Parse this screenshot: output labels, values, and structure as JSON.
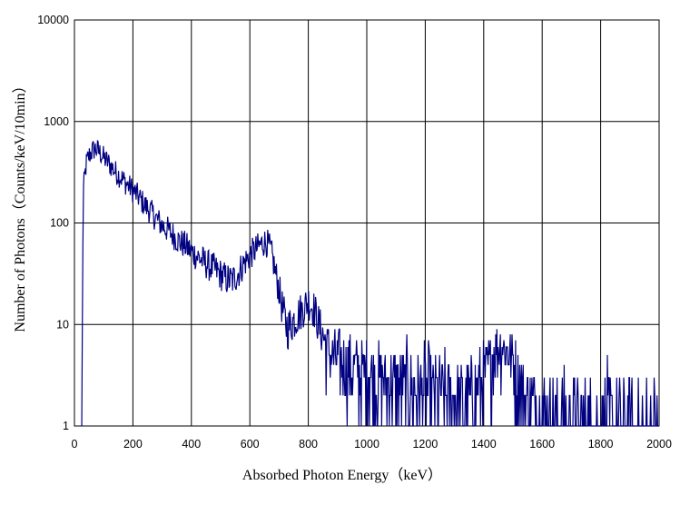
{
  "chart_data": {
    "type": "line",
    "title": "",
    "xlabel": "Absorbed Photon Energy（keV）",
    "ylabel": "Number of Photons（Counts/keV/10min）",
    "xlim": [
      0,
      2000
    ],
    "ylim": [
      1,
      10000
    ],
    "yscale": "log",
    "grid": true,
    "legend": "none",
    "line_color": "#000080",
    "x_ticks": [
      "0",
      "200",
      "400",
      "600",
      "800",
      "1000",
      "1200",
      "1400",
      "1600",
      "1800",
      "2000"
    ],
    "y_ticks": [
      "1",
      "10",
      "100",
      "1000",
      "10000"
    ],
    "series": [
      {
        "x": [
          25,
          30,
          40,
          50,
          60,
          70,
          80,
          90,
          100,
          120,
          140,
          160,
          180,
          200,
          220,
          240,
          260,
          280,
          300,
          320,
          340,
          360,
          380,
          400,
          420,
          440,
          460,
          480,
          500,
          520,
          540,
          560,
          580,
          600,
          620,
          640,
          650,
          660,
          670,
          680,
          690,
          700,
          710,
          720,
          730,
          740,
          750,
          760,
          780,
          800,
          820,
          840,
          860,
          880,
          900,
          950,
          1000,
          1050,
          1100,
          1150,
          1200,
          1250,
          1300,
          1350,
          1400,
          1420,
          1440,
          1460,
          1480,
          1500,
          1520,
          1550,
          1600,
          1650,
          1700,
          1750,
          1800,
          1850,
          1900,
          1950,
          2000
        ],
        "y": [
          1,
          200,
          380,
          460,
          510,
          540,
          520,
          480,
          440,
          380,
          320,
          280,
          240,
          210,
          180,
          150,
          130,
          110,
          95,
          85,
          75,
          65,
          60,
          52,
          47,
          42,
          38,
          35,
          31,
          28,
          27,
          32,
          40,
          48,
          55,
          62,
          65,
          63,
          55,
          42,
          30,
          22,
          15,
          11,
          9,
          10,
          11,
          12,
          14,
          17,
          14,
          9,
          7,
          5,
          5,
          4,
          3.5,
          3,
          3,
          2.5,
          2.5,
          2.2,
          2,
          2,
          3,
          4.5,
          6,
          6.5,
          6,
          4.5,
          3,
          2,
          1.5,
          1.3,
          1.2,
          1.2,
          1.2,
          1.1,
          1.1,
          1.1,
          1.1
        ]
      }
    ]
  }
}
